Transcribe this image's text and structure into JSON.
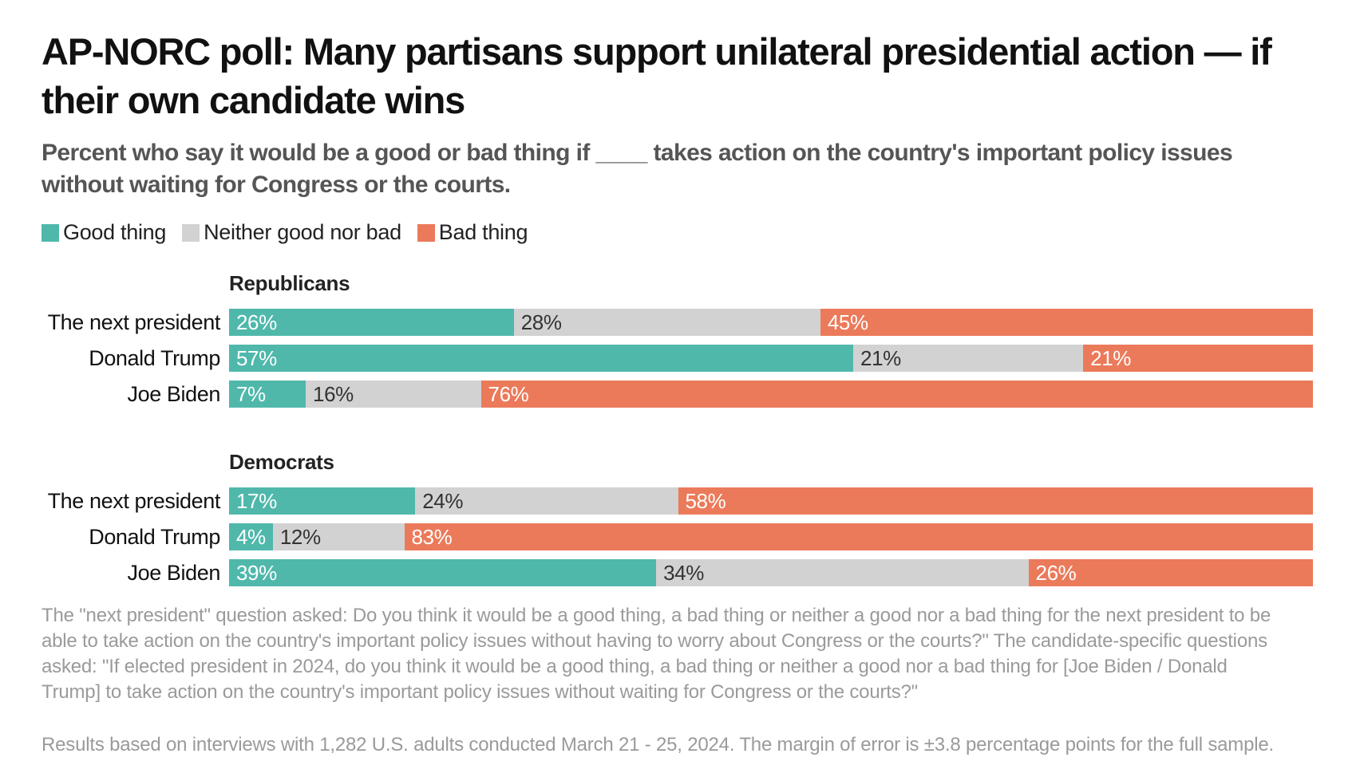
{
  "title": "AP-NORC poll: Many partisans support unilateral presidential action — if their own candidate wins",
  "subtitle": "Percent who say it would be a good or bad thing if ____ takes action on the country's important policy issues without waiting for Congress or the courts.",
  "legend": [
    {
      "label": "Good thing",
      "color": "#4fb8ab"
    },
    {
      "label": "Neither good nor bad",
      "color": "#d2d2d2"
    },
    {
      "label": "Bad thing",
      "color": "#eb7a5a"
    }
  ],
  "chart_data": {
    "type": "bar",
    "orientation": "horizontal",
    "stacked": true,
    "unit": "%",
    "series_names": [
      "Good thing",
      "Neither good nor bad",
      "Bad thing"
    ],
    "groups": [
      {
        "name": "Republicans",
        "rows": [
          {
            "label": "The next president",
            "values": [
              26,
              28,
              45
            ]
          },
          {
            "label": "Donald Trump",
            "values": [
              57,
              21,
              21
            ]
          },
          {
            "label": "Joe Biden",
            "values": [
              7,
              16,
              76
            ]
          }
        ]
      },
      {
        "name": "Democrats",
        "rows": [
          {
            "label": "The next president",
            "values": [
              17,
              24,
              58
            ]
          },
          {
            "label": "Donald Trump",
            "values": [
              4,
              12,
              83
            ]
          },
          {
            "label": "Joe Biden",
            "values": [
              39,
              34,
              26
            ]
          }
        ]
      }
    ]
  },
  "notes": {
    "question_text": "The \"next president\" question asked: Do you think it would be a good thing, a bad thing or neither a good nor a bad thing for the next president to be able to take action on the country's important policy issues without having to worry about Congress or the courts?\" The candidate-specific questions asked: \"If elected president in 2024, do you think it would be a good thing, a bad thing or neither a good nor a bad thing for [Joe Biden / Donald Trump] to take action on the country's important policy issues without waiting for Congress or the courts?\"",
    "methodology": "Results based on interviews with 1,282 U.S. adults conducted March 21 - 25, 2024. The margin of error is ±3.8 percentage points for the full sample."
  }
}
